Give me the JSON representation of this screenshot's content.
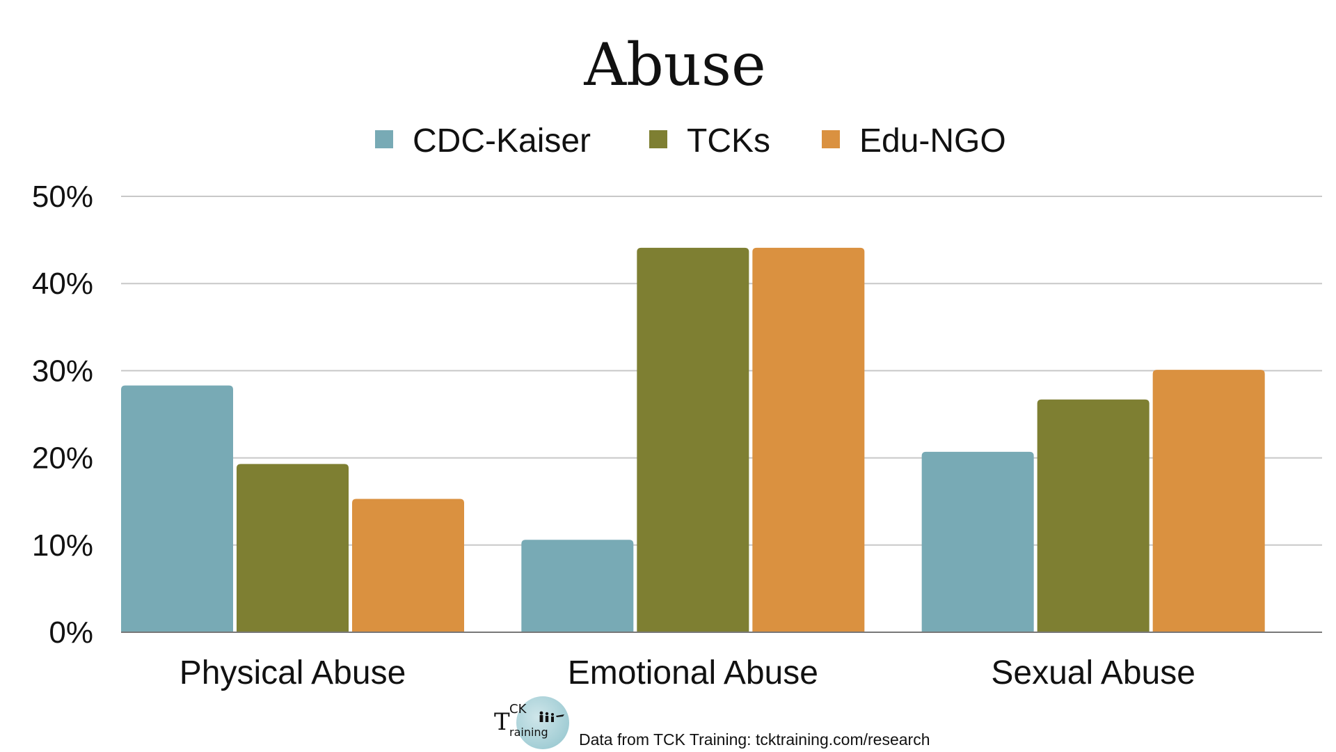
{
  "chart_data": {
    "type": "bar",
    "title": "Abuse",
    "categories": [
      "Physical Abuse",
      "Emotional Abuse",
      "Sexual Abuse"
    ],
    "series": [
      {
        "name": "CDC-Kaiser",
        "color": "#78aab5",
        "values": [
          28.3,
          10.6,
          20.7
        ]
      },
      {
        "name": "TCKs",
        "color": "#7e7f32",
        "values": [
          19.3,
          44.1,
          26.7
        ]
      },
      {
        "name": "Edu-NGO",
        "color": "#da9140",
        "values": [
          15.3,
          44.1,
          30.1
        ]
      }
    ],
    "ylim": [
      0,
      50
    ],
    "yticks": [
      "0%",
      "10%",
      "20%",
      "30%",
      "40%",
      "50%"
    ],
    "grid": true,
    "legend_position": "top-center"
  },
  "footer": {
    "logo_big": "T",
    "logo_top": "CK",
    "logo_bottom": "raining",
    "source": "Data from TCK Training: tcktraining.com/research"
  }
}
